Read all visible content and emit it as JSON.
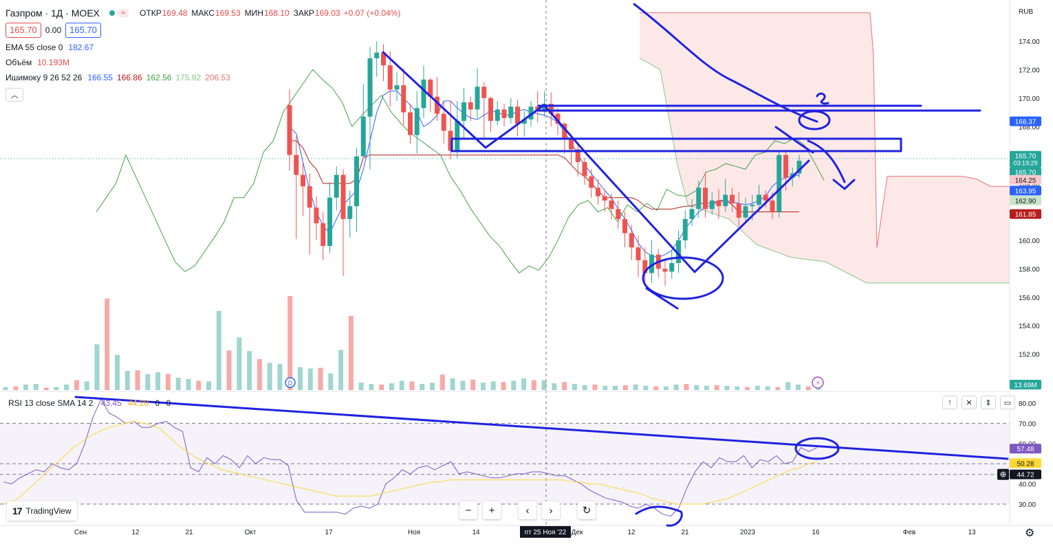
{
  "header": {
    "symbol_title": "Газпром · 1Д · MOEX",
    "open_key": "ОТКР",
    "open_val": "169.48",
    "high_key": "МАКС",
    "high_val": "169.53",
    "low_key": "МИН",
    "low_val": "168.10",
    "close_key": "ЗАКР",
    "close_val": "169.03",
    "change": "+0.07 (+0.04%)",
    "sell_price": "165.70",
    "spread": "0.00",
    "buy_price": "165.70",
    "currency": "RUB"
  },
  "indicators": {
    "ema_label": "EMA 55 close 0",
    "ema_value": "182.67",
    "volume_label": "Объём",
    "volume_value": "10.193M",
    "ichimoku_label": "Ишимоку 9 26 52 26",
    "ichimoku_values": [
      "166.55",
      "166.86",
      "162.56",
      "175.92",
      "206.53"
    ]
  },
  "rsi": {
    "label": "RSI 13 close SMA 14 2",
    "value1": "43.45",
    "value2": "44.28",
    "value3": "0",
    "hidden_value": "0"
  },
  "branding": {
    "logo_text": "TradingView"
  },
  "colors": {
    "up": "#26a69a",
    "down": "#ef5350",
    "drawing": "#1e22e0",
    "kijun": "#b71c1c",
    "tenkan": "#2962ff",
    "chikou": "#43a047",
    "rsi": "#7e57c2",
    "rsi_ma": "#fdd835"
  },
  "chart_data": [
    {
      "type": "candlestick",
      "title": "Газпром · 1Д · MOEX",
      "ylabel": "RUB",
      "ylim": [
        150,
        176
      ],
      "y_ticks": [
        "174.00",
        "172.00",
        "170.00",
        "168.00",
        "166.00",
        "164.00",
        "162.00",
        "160.00",
        "158.00",
        "156.00",
        "154.00",
        "152.00",
        "150.00"
      ],
      "x_tick_labels": [
        "Сен",
        "12",
        "21",
        "Окт",
        "17",
        "Ноя",
        "14",
        "Дек",
        "12",
        "21",
        "2023",
        "16",
        "Фев",
        "13"
      ],
      "crosshair_date": "пт 25 Ноя '22",
      "price_labels": [
        {
          "text": "168.37",
          "price": 168.37,
          "color": "#2962ff"
        },
        {
          "text": "165.70",
          "price": 165.95,
          "color": "#26a69a",
          "sub": "03:19:29"
        },
        {
          "text": "165.70",
          "price": 164.8,
          "color": "#26a69a"
        },
        {
          "text": "164.25",
          "price": 164.25,
          "color": "#f8c9c9",
          "dark": true
        },
        {
          "text": "163.95",
          "price": 163.5,
          "color": "#2962ff"
        },
        {
          "text": "162.90",
          "price": 162.8,
          "color": "#c8e6c9",
          "dark": true
        },
        {
          "text": "161.85",
          "price": 161.85,
          "color": "#b71c1c"
        }
      ],
      "volume_badge": "13.69M",
      "candles": [
        [
          169.5,
          166.0,
          170.6,
          164.9
        ],
        [
          166.0,
          164.6,
          167.3,
          160.1
        ],
        [
          164.6,
          163.8,
          165.5,
          161.7
        ],
        [
          163.8,
          162.3,
          164.7,
          159.0
        ],
        [
          162.3,
          161.2,
          163.1,
          160.0
        ],
        [
          161.2,
          159.6,
          162.0,
          158.6
        ],
        [
          159.6,
          163.0,
          164.1,
          159.1
        ],
        [
          163.0,
          164.6,
          165.2,
          162.1
        ],
        [
          164.6,
          161.5,
          165.0,
          157.5
        ],
        [
          161.5,
          162.4,
          163.5,
          160.2
        ],
        [
          162.4,
          165.9,
          166.5,
          160.6
        ],
        [
          165.9,
          168.7,
          171.0,
          166.0
        ],
        [
          168.7,
          172.8,
          173.6,
          165.0
        ],
        [
          172.8,
          173.2,
          174.0,
          171.5
        ],
        [
          173.2,
          172.3,
          173.8,
          171.2
        ],
        [
          172.3,
          170.6,
          173.3,
          169.4
        ],
        [
          170.6,
          170.9,
          171.8,
          169.8
        ],
        [
          170.9,
          169.0,
          172.1,
          168.1
        ],
        [
          169.0,
          167.4,
          169.6,
          166.8
        ],
        [
          167.4,
          169.3,
          170.5,
          166.1
        ],
        [
          169.3,
          171.3,
          172.3,
          168.6
        ],
        [
          171.3,
          170.1,
          171.4,
          169.0
        ],
        [
          170.1,
          168.9,
          171.5,
          168.4
        ],
        [
          168.9,
          167.7,
          169.8,
          166.8
        ],
        [
          167.7,
          166.3,
          169.8,
          165.7
        ],
        [
          166.3,
          168.4,
          169.8,
          165.8
        ],
        [
          168.4,
          169.7,
          170.7,
          167.2
        ],
        [
          169.7,
          169.2,
          170.1,
          168.4
        ],
        [
          169.2,
          170.8,
          172.1,
          168.6
        ],
        [
          170.8,
          170.0,
          171.1,
          167.2
        ],
        [
          170.0,
          168.4,
          170.1,
          167.6
        ],
        [
          168.4,
          169.2,
          169.8,
          168.1
        ],
        [
          169.2,
          168.6,
          169.6,
          168.0
        ],
        [
          168.6,
          169.4,
          170.0,
          168.2
        ],
        [
          169.4,
          168.2,
          169.9,
          167.3
        ],
        [
          168.2,
          168.5,
          169.1,
          167.3
        ],
        [
          168.5,
          169.4,
          169.8,
          168.0
        ],
        [
          169.4,
          169.1,
          170.5,
          168.3
        ],
        [
          169.1,
          169.6,
          170.5,
          168.7
        ],
        [
          169.6,
          168.9,
          170.4,
          168.0
        ],
        [
          168.9,
          168.2,
          169.3,
          167.4
        ],
        [
          168.2,
          167.2,
          168.3,
          166.1
        ],
        [
          167.2,
          166.4,
          167.4,
          165.3
        ],
        [
          166.4,
          165.5,
          166.8,
          164.5
        ],
        [
          165.5,
          164.5,
          165.8,
          163.9
        ],
        [
          164.5,
          163.7,
          165.0,
          163.0
        ],
        [
          163.7,
          163.1,
          164.3,
          162.5
        ],
        [
          163.1,
          162.8,
          163.6,
          162.0
        ],
        [
          162.8,
          162.2,
          163.3,
          161.5
        ],
        [
          162.2,
          161.5,
          162.8,
          160.8
        ],
        [
          161.5,
          160.5,
          162.0,
          159.5
        ],
        [
          160.5,
          159.5,
          161.1,
          158.6
        ],
        [
          159.5,
          158.6,
          160.3,
          157.4
        ],
        [
          158.6,
          157.7,
          159.5,
          157.1
        ],
        [
          157.7,
          159.0,
          160.0,
          157.0
        ],
        [
          159.0,
          158.0,
          159.4,
          157.4
        ],
        [
          158.0,
          157.8,
          158.6,
          156.8
        ],
        [
          157.8,
          158.4,
          159.3,
          157.3
        ],
        [
          158.4,
          160.0,
          160.7,
          157.7
        ],
        [
          160.0,
          161.5,
          162.1,
          159.4
        ],
        [
          161.5,
          162.2,
          162.9,
          161.0
        ],
        [
          162.2,
          163.7,
          164.2,
          161.6
        ],
        [
          163.7,
          162.2,
          164.8,
          161.6
        ],
        [
          162.2,
          162.8,
          163.4,
          161.8
        ],
        [
          162.8,
          162.4,
          163.6,
          161.5
        ],
        [
          162.4,
          163.2,
          164.3,
          162.0
        ],
        [
          163.2,
          162.6,
          163.7,
          162.0
        ],
        [
          162.6,
          161.6,
          163.4,
          161.0
        ],
        [
          161.6,
          162.4,
          163.0,
          161.2
        ],
        [
          162.4,
          162.5,
          163.2,
          161.4
        ],
        [
          162.5,
          163.2,
          163.9,
          162.0
        ],
        [
          163.2,
          162.8,
          163.5,
          162.3
        ],
        [
          162.8,
          162.0,
          163.4,
          161.5
        ],
        [
          162.0,
          166.0,
          166.3,
          161.6
        ],
        [
          166.0,
          164.4,
          166.3,
          163.5
        ],
        [
          164.4,
          164.7,
          165.1,
          163.8
        ],
        [
          164.7,
          165.6,
          166.0,
          164.4
        ]
      ],
      "tenkan": [
        168.0,
        167.5,
        165.5,
        163.5,
        162.0,
        161.0,
        160.5,
        161.5,
        162.5,
        163.0,
        163.5,
        165.0,
        167.0,
        169.0,
        170.2,
        170.5,
        170.5,
        170.0,
        169.5,
        169.0,
        168.0,
        168.3,
        168.8,
        169.8,
        169.8,
        169.3,
        168.9,
        168.6,
        168.5,
        168.8,
        169.1,
        169.0,
        168.8,
        168.8,
        169.1,
        169.2,
        169.0,
        168.9,
        168.8,
        168.6,
        168.3,
        167.6,
        166.9,
        166.0,
        165.3,
        164.7,
        164.1,
        163.5,
        163.0,
        162.2,
        161.5,
        160.7,
        159.8,
        159.2,
        158.9,
        158.8,
        159.0,
        159.3,
        160.0,
        160.8,
        161.4,
        162.0,
        162.3,
        162.5,
        162.7,
        162.8,
        162.7,
        162.6,
        162.5,
        162.6,
        162.8,
        163.1,
        163.8,
        164.2,
        164.4,
        164.5,
        164.6
      ],
      "kijun": [
        167.0,
        167.0,
        166.5,
        165.5,
        165.0,
        164.0,
        164.0,
        164.0,
        164.0,
        164.0,
        164.3,
        165.8,
        166.0,
        166.0,
        166.0,
        166.0,
        166.0,
        166.0,
        166.0,
        166.0,
        166.0,
        166.0,
        166.0,
        166.0,
        166.0,
        166.0,
        166.0,
        166.0,
        166.0,
        166.0,
        166.0,
        166.0,
        166.0,
        166.0,
        166.0,
        166.0,
        166.0,
        166.0,
        166.0,
        166.0,
        166.0,
        165.8,
        165.3,
        164.8,
        164.5,
        164.0,
        163.5,
        163.0,
        163.0,
        163.0,
        163.0,
        163.0,
        162.8,
        162.4,
        162.2,
        162.2,
        162.2,
        162.2,
        162.3,
        162.4,
        162.4,
        162.6,
        162.6,
        162.6,
        162.8,
        162.8,
        162.5,
        162.0,
        162.0,
        162.0,
        162.0,
        162.0,
        162.0,
        162.0,
        162.0,
        162.0,
        162.0
      ],
      "chikou": [
        162.0,
        163.0,
        164.0,
        166.0,
        164.5,
        163.0,
        161.5,
        160.0,
        158.5,
        157.8,
        158.2,
        159.2,
        160.2,
        161.3,
        163.0,
        163.0,
        164.0,
        166.2,
        167.0,
        169.0,
        170.0,
        171.0,
        172.0,
        171.3,
        170.7,
        169.7,
        168.0,
        168.8,
        169.5,
        170.2,
        169.0,
        168.2,
        167.5,
        167.0,
        166.5,
        166.0,
        164.5,
        163.5,
        162.3,
        161.3,
        160.3,
        159.6,
        158.6,
        157.7,
        158.2,
        157.9,
        158.8,
        160.1,
        161.6,
        162.5,
        162.8,
        162.0,
        162.3,
        161.3,
        162.5,
        162.0,
        162.6,
        162.1,
        163.6,
        163.2,
        163.1,
        163.5,
        164.8,
        165.0,
        165.4,
        165.2,
        165.0,
        166.0,
        166.2,
        167.0,
        166.8,
        167.2,
        166.7,
        165.5,
        164.2
      ],
      "volume": [
        0.5,
        0.6,
        0.9,
        1.0,
        0.4,
        0.5,
        0.9,
        1.6,
        1.4,
        7.4,
        14.8,
        5.7,
        3.1,
        3.2,
        2.6,
        2.9,
        2.6,
        2.0,
        1.8,
        1.5,
        1.4,
        12.8,
        6.4,
        8.5,
        6.3,
        5.0,
        4.4,
        4.2,
        15.2,
        3.7,
        3.5,
        3.6,
        2.7,
        6.5,
        12.0,
        1.2,
        1.0,
        0.9,
        1.1,
        1.5,
        1.4,
        1.0,
        1.2,
        2.5,
        1.9,
        1.5,
        1.7,
        1.2,
        1.4,
        1.3,
        1.5,
        1.9,
        1.6,
        1.6,
        1.1,
        1.3,
        1.0,
        0.8,
        0.9,
        0.7,
        0.7,
        0.8,
        0.9,
        0.7,
        0.6,
        0.6,
        0.9,
        1.0,
        0.8,
        0.7,
        0.8,
        0.7,
        0.6,
        0.5,
        0.7,
        0.6,
        0.5,
        1.3,
        0.9,
        0.6,
        0.5
      ]
    },
    {
      "type": "line",
      "title": "RSI 13 close SMA 14 2",
      "ylim": [
        22,
        86
      ],
      "y_ticks": [
        "80.00",
        "70.00",
        "60.00",
        "50.00",
        "40.00",
        "30.00"
      ],
      "band": [
        30,
        70
      ],
      "value_labels": [
        {
          "text": "57.48",
          "value": 57.48,
          "color": "#7e57c2"
        },
        {
          "text": "50.28",
          "value": 50.28,
          "color": "#fdd835",
          "dark": true
        },
        {
          "text": "44.72",
          "value": 44.72,
          "color": "#131722"
        }
      ],
      "rsi": [
        41,
        40,
        43,
        45,
        47,
        46,
        50,
        48,
        47,
        50,
        60,
        73,
        82,
        75,
        73,
        70,
        71,
        68,
        68,
        70,
        71,
        68,
        66,
        48,
        46,
        53,
        50,
        54,
        52,
        48,
        54,
        50,
        53,
        52,
        52,
        49,
        32,
        26,
        26,
        26,
        26,
        26,
        25,
        28,
        29,
        28,
        30,
        40,
        43,
        47,
        45,
        48,
        49,
        47,
        49,
        51,
        45,
        46,
        45,
        44,
        43,
        43,
        44,
        45,
        45,
        46,
        46,
        45,
        44,
        44,
        42,
        40,
        37,
        35,
        33,
        32,
        31,
        29,
        28,
        30,
        28,
        25,
        24,
        28,
        38,
        46,
        51,
        48,
        53,
        51,
        51,
        54,
        48,
        52,
        51,
        54,
        50,
        51,
        58,
        56,
        58
      ],
      "rsi_ma": [
        30,
        31,
        34,
        38,
        42,
        46,
        50,
        54,
        58,
        61,
        64,
        66,
        68,
        69,
        70,
        71,
        70,
        69,
        67,
        63,
        59,
        56,
        53,
        51,
        49,
        47,
        46,
        45,
        44,
        43,
        42,
        41,
        40,
        39,
        38,
        37,
        36,
        35,
        34,
        34,
        34,
        34,
        34,
        35,
        36,
        37,
        38,
        39,
        40,
        41,
        41,
        42,
        42,
        42,
        42,
        42,
        42,
        42,
        42,
        42,
        42,
        42,
        42,
        42,
        42,
        41,
        41,
        40,
        40,
        39,
        38,
        37,
        36,
        35,
        33,
        32,
        31,
        30,
        30,
        30,
        30,
        31,
        32,
        33,
        35,
        37,
        39,
        41,
        43,
        45,
        47,
        48,
        50,
        51
      ],
      "x_tick_labels": [
        "Сен",
        "12",
        "21",
        "Окт",
        "17",
        "Ноя",
        "14",
        "Дек",
        "12",
        "21",
        "2023",
        "16",
        "Фев",
        "13"
      ]
    }
  ]
}
